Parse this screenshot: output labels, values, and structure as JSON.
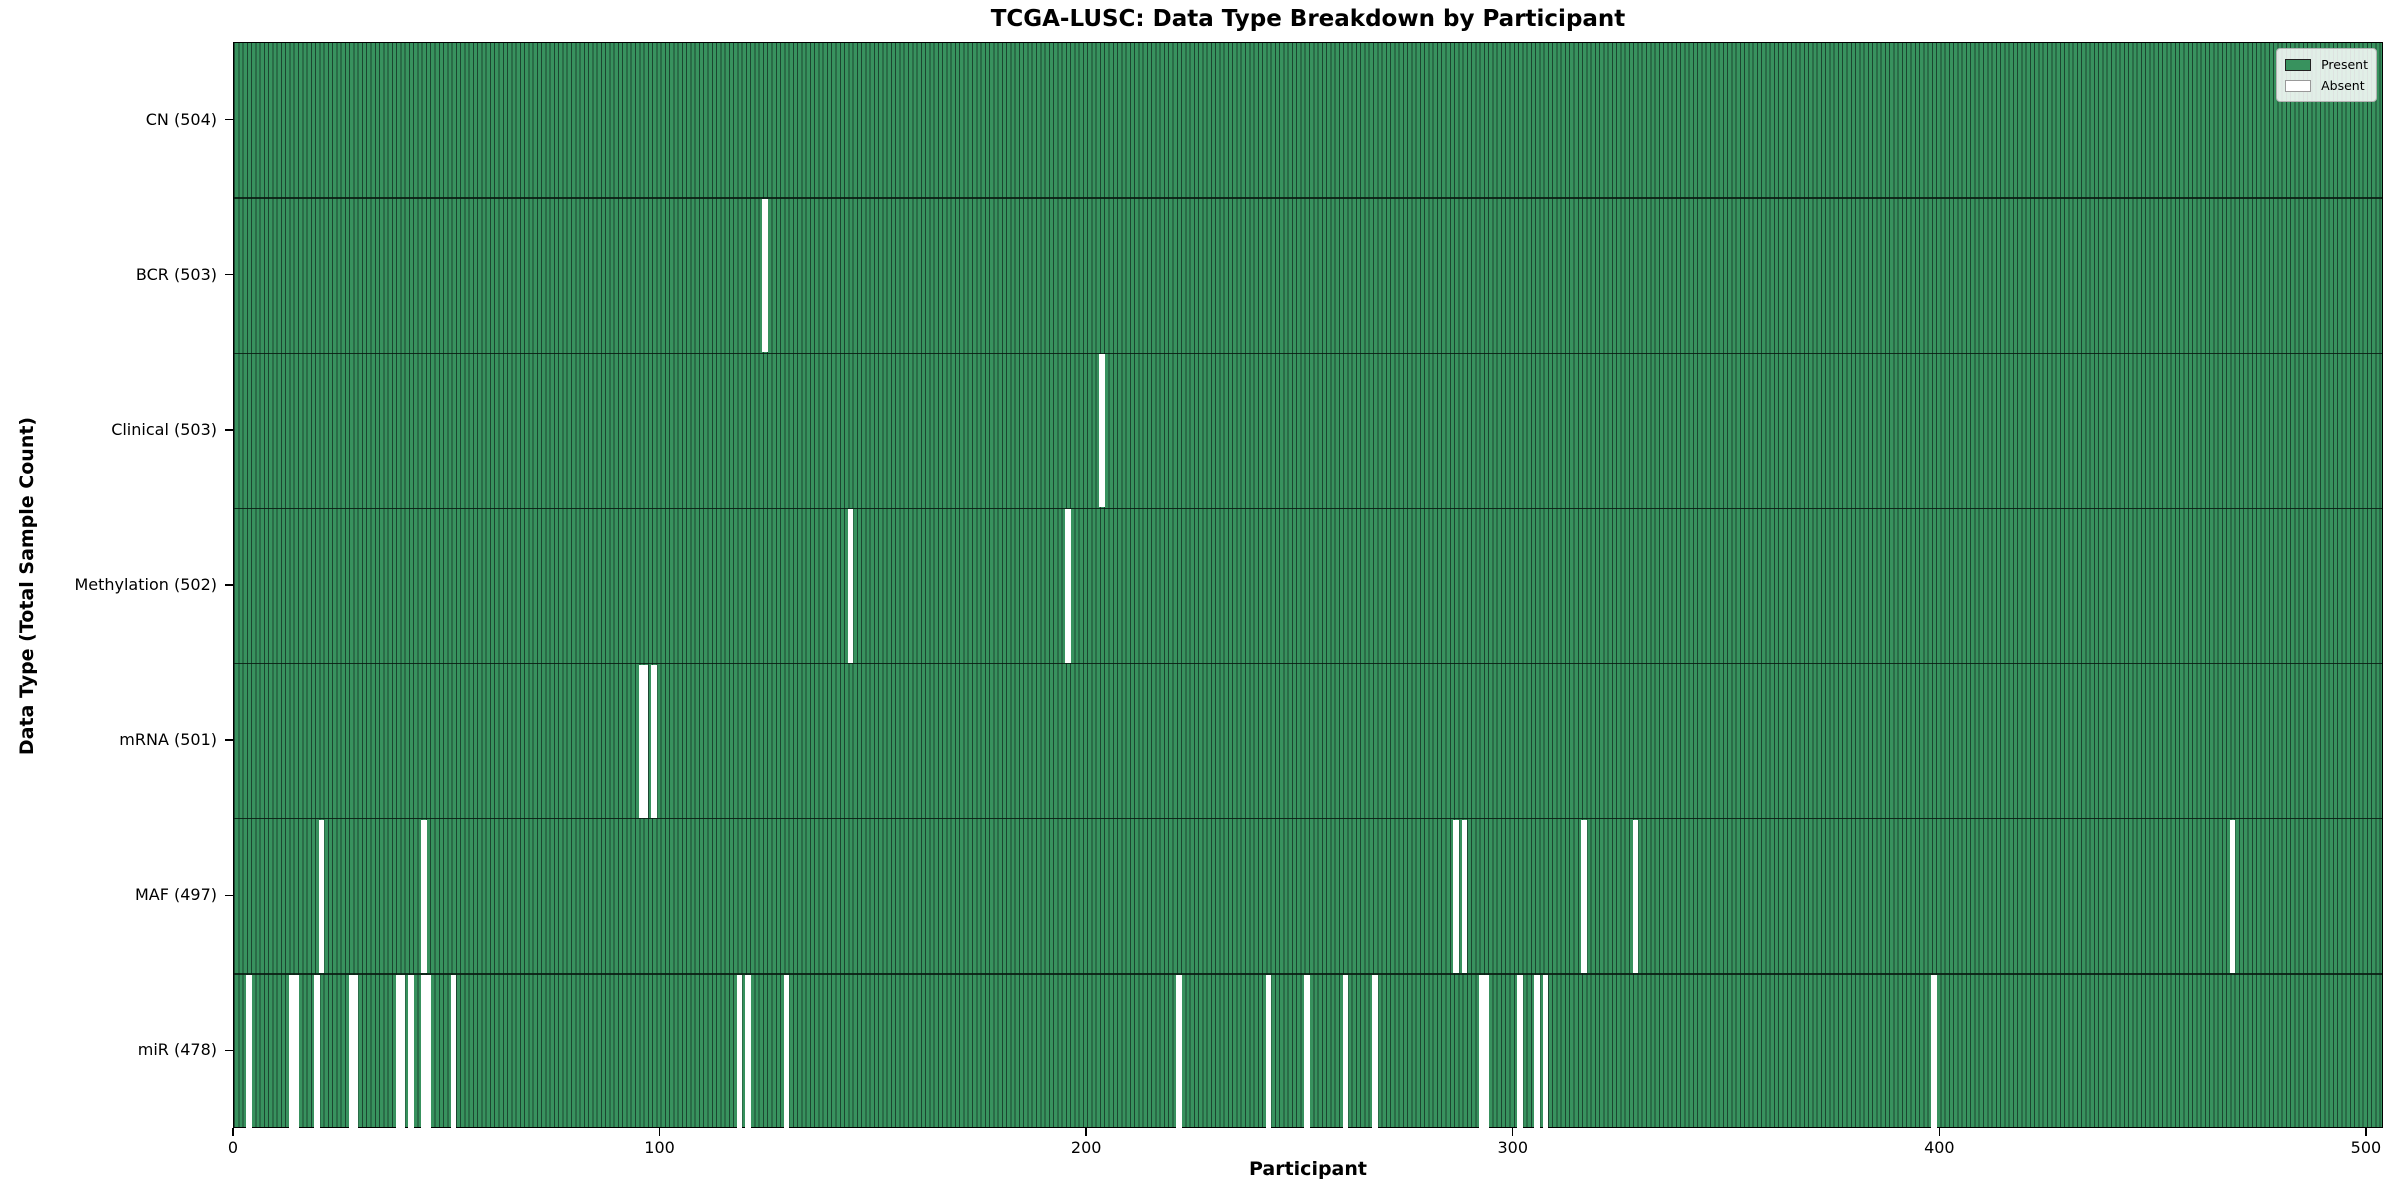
{
  "title": "TCGA-LUSC: Data Type Breakdown by Participant",
  "chart_data": {
    "type": "heatmap",
    "title": "TCGA-LUSC: Data Type Breakdown by Participant",
    "xlabel": "Participant",
    "ylabel": "Data Type (Total Sample Count)",
    "x_ticks": [
      0,
      100,
      200,
      300,
      400,
      500
    ],
    "xlim": [
      0,
      504
    ],
    "total_participants": 504,
    "grid": false,
    "legend": {
      "position": "upper right",
      "entries": [
        {
          "label": "Present",
          "color": "#38925e"
        },
        {
          "label": "Absent",
          "color": "#ffffff"
        }
      ]
    },
    "colors": {
      "present_fill": "#38925e",
      "bar_edge": "#1b4630",
      "absent_fill": "#ffffff",
      "separator": "rgba(8,26,17,0.85)"
    },
    "rows": [
      {
        "label": "CN (504)",
        "data_type": "CN",
        "count": 504,
        "absent_participants": []
      },
      {
        "label": "BCR (503)",
        "data_type": "BCR",
        "count": 503,
        "absent_participants": [
          124
        ]
      },
      {
        "label": "Clinical (503)",
        "data_type": "Clinical",
        "count": 503,
        "absent_participants": [
          203
        ]
      },
      {
        "label": "Methylation (502)",
        "data_type": "Methylation",
        "count": 502,
        "absent_participants": [
          144,
          195
        ]
      },
      {
        "label": "mRNA (501)",
        "data_type": "mRNA",
        "count": 501,
        "absent_participants": [
          95,
          96,
          98
        ]
      },
      {
        "label": "MAF (497)",
        "data_type": "MAF",
        "count": 497,
        "absent_participants": [
          20,
          44,
          286,
          288,
          316,
          328,
          468
        ]
      },
      {
        "label": "miR (478)",
        "data_type": "miR",
        "count": 478,
        "absent_participants": [
          3,
          13,
          14,
          19,
          27,
          28,
          38,
          39,
          41,
          44,
          45,
          51,
          118,
          120,
          129,
          221,
          242,
          251,
          260,
          267,
          292,
          293,
          301,
          305,
          307,
          398
        ]
      }
    ]
  }
}
